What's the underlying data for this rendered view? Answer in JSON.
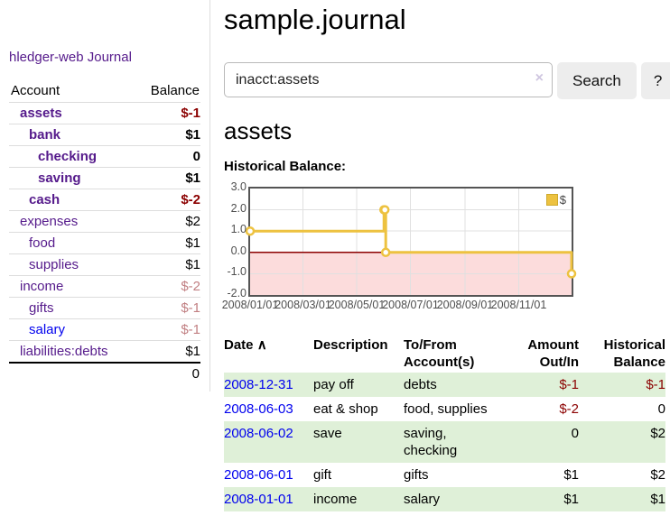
{
  "app": {
    "brand": "hledger-web",
    "nav_journal": "Journal"
  },
  "sidebar": {
    "header": {
      "account": "Account",
      "balance": "Balance"
    },
    "accounts": [
      {
        "name": "assets",
        "depth": 1,
        "bold": true,
        "balance": "$-1",
        "tone": "neg"
      },
      {
        "name": "bank",
        "depth": 2,
        "bold": true,
        "balance": "$1",
        "tone": ""
      },
      {
        "name": "checking",
        "depth": 3,
        "bold": true,
        "balance": "0",
        "tone": ""
      },
      {
        "name": "saving",
        "depth": 3,
        "bold": true,
        "balance": "$1",
        "tone": ""
      },
      {
        "name": "cash",
        "depth": 2,
        "bold": true,
        "balance": "$-2",
        "tone": "neg"
      },
      {
        "name": "expenses",
        "depth": 1,
        "bold": false,
        "balance": "$2",
        "tone": ""
      },
      {
        "name": "food",
        "depth": 2,
        "bold": false,
        "balance": "$1",
        "tone": ""
      },
      {
        "name": "supplies",
        "depth": 2,
        "bold": false,
        "balance": "$1",
        "tone": ""
      },
      {
        "name": "income",
        "depth": 1,
        "bold": false,
        "balance": "$-2",
        "tone": "negmuted"
      },
      {
        "name": "gifts",
        "depth": 2,
        "bold": false,
        "balance": "$-1",
        "tone": "negmuted"
      },
      {
        "name": "salary",
        "depth": 2,
        "bold": false,
        "balance": "$-1",
        "tone": "negmuted",
        "link_color": "blue"
      },
      {
        "name": "liabilities:debts",
        "depth": 1,
        "bold": false,
        "balance": "$1",
        "tone": ""
      }
    ],
    "total": "0"
  },
  "main": {
    "title": "sample.journal",
    "search": {
      "value": "inacct:assets",
      "clear_icon": "×",
      "search_label": "Search",
      "help_label": "?"
    },
    "account_heading": "assets"
  },
  "chart_data": {
    "type": "line",
    "style": "step",
    "title": "Historical Balance:",
    "series": [
      {
        "name": "$",
        "color": "#edc240",
        "points": [
          [
            "2008-01-01",
            1
          ],
          [
            "2008-06-01",
            2
          ],
          [
            "2008-06-02",
            2
          ],
          [
            "2008-06-03",
            0
          ],
          [
            "2008-12-31",
            -1
          ]
        ]
      }
    ],
    "xlim": [
      "2008-01-01",
      "2008-12-31"
    ],
    "ylim": [
      -2,
      3
    ],
    "y_ticks": [
      "3.0",
      "2.0",
      "1.0",
      "0.0",
      "-1.0",
      "-2.0"
    ],
    "x_ticks": [
      "2008/01/01",
      "2008/03/01",
      "2008/05/01",
      "2008/07/01",
      "2008/09/01",
      "2008/11/01"
    ],
    "grid": true,
    "legend": {
      "label": "$",
      "position": "top-right"
    },
    "negative_region_color": "#fcdcdc",
    "zero_line_color": "#8b0000",
    "grid_color": "#e0e0e0"
  },
  "register": {
    "columns": [
      {
        "line1": "Date",
        "sort_icon": "∧"
      },
      {
        "line1": "Description"
      },
      {
        "line1": "To/From",
        "line2": "Account(s)"
      },
      {
        "line1": "Amount",
        "line2": "Out/In"
      },
      {
        "line1": "Historical",
        "line2": "Balance"
      }
    ],
    "rows": [
      {
        "date": "2008-12-31",
        "description": "pay off",
        "accounts": "debts",
        "amount": "$-1",
        "amount_neg": true,
        "balance": "$-1",
        "balance_neg": true
      },
      {
        "date": "2008-06-03",
        "description": "eat & shop",
        "accounts": "food, supplies",
        "amount": "$-2",
        "amount_neg": true,
        "balance": "0",
        "balance_neg": false
      },
      {
        "date": "2008-06-02",
        "description": "save",
        "accounts": "saving, checking",
        "amount": "0",
        "amount_neg": false,
        "balance": "$2",
        "balance_neg": false
      },
      {
        "date": "2008-06-01",
        "description": "gift",
        "accounts": "gifts",
        "amount": "$1",
        "amount_neg": false,
        "balance": "$2",
        "balance_neg": false
      },
      {
        "date": "2008-01-01",
        "description": "income",
        "accounts": "salary",
        "amount": "$1",
        "amount_neg": false,
        "balance": "$1",
        "balance_neg": false
      }
    ]
  },
  "colors": {
    "link_purple": "#551a8b",
    "link_blue": "#0000ee",
    "negative_strong": "#8b0000",
    "negative_muted": "#c17f82",
    "row_stripe_green": "#dff0d8",
    "chart_line_gold": "#edc240"
  }
}
